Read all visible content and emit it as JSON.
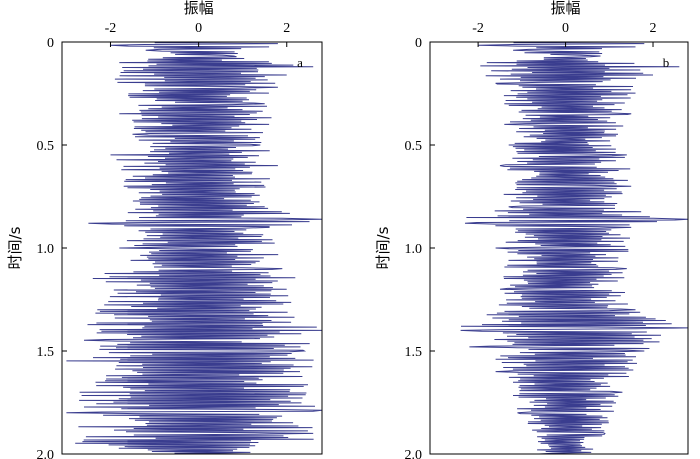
{
  "chart_data": [
    {
      "type": "line",
      "panel_label": "a",
      "title": "",
      "xlabel": "振幅",
      "ylabel": "时间/s",
      "x_axis_position": "top",
      "y_axis_inverted": true,
      "xlim": [
        -3.1,
        2.8
      ],
      "ylim": [
        0,
        2.0
      ],
      "x_ticks": [
        -2,
        0,
        2
      ],
      "x_tick_labels": [
        "-2",
        "0",
        "2"
      ],
      "y_ticks": [
        0,
        0.5,
        1.0,
        1.5,
        2.0
      ],
      "y_tick_labels": [
        "0",
        "0.5",
        "1.0",
        "1.5",
        "2.0"
      ],
      "grid": false,
      "line_color": "#3a3d8f",
      "series": [
        {
          "sample_interval_s": 0.004,
          "keyframes": [
            {
              "t": 0.0,
              "x": -0.6
            },
            {
              "t": 0.008,
              "x": 1.8
            },
            {
              "t": 0.016,
              "x": -2.0
            },
            {
              "t": 0.024,
              "x": 1.6
            },
            {
              "t": 0.04,
              "x": -1.2
            },
            {
              "t": 0.07,
              "x": 0.8
            },
            {
              "t": 0.1,
              "x": -1.8
            },
            {
              "t": 0.12,
              "x": 2.6
            },
            {
              "t": 0.14,
              "x": -1.7
            },
            {
              "t": 0.16,
              "x": 2.0
            },
            {
              "t": 0.18,
              "x": -1.9
            },
            {
              "t": 0.22,
              "x": 1.8
            },
            {
              "t": 0.26,
              "x": -1.6
            },
            {
              "t": 0.3,
              "x": 1.5
            },
            {
              "t": 0.35,
              "x": -1.8
            },
            {
              "t": 0.4,
              "x": 1.6
            },
            {
              "t": 0.45,
              "x": -1.5
            },
            {
              "t": 0.5,
              "x": 1.4
            },
            {
              "t": 0.55,
              "x": -2.0
            },
            {
              "t": 0.6,
              "x": 1.8
            },
            {
              "t": 0.7,
              "x": -1.7
            },
            {
              "t": 0.8,
              "x": 1.5
            },
            {
              "t": 0.86,
              "x": 2.8
            },
            {
              "t": 0.88,
              "x": -2.5
            },
            {
              "t": 0.9,
              "x": 1.6
            },
            {
              "t": 1.0,
              "x": -1.8
            },
            {
              "t": 1.1,
              "x": 1.9
            },
            {
              "t": 1.15,
              "x": -2.4
            },
            {
              "t": 1.2,
              "x": 2.0
            },
            {
              "t": 1.3,
              "x": -2.3
            },
            {
              "t": 1.4,
              "x": 2.8
            },
            {
              "t": 1.45,
              "x": -2.6
            },
            {
              "t": 1.5,
              "x": 2.4
            },
            {
              "t": 1.55,
              "x": -3.0
            },
            {
              "t": 1.6,
              "x": 2.3
            },
            {
              "t": 1.7,
              "x": -2.7
            },
            {
              "t": 1.79,
              "x": 2.8
            },
            {
              "t": 1.8,
              "x": -3.0
            },
            {
              "t": 1.9,
              "x": 2.6
            },
            {
              "t": 1.95,
              "x": -2.8
            },
            {
              "t": 2.0,
              "x": 1.2
            }
          ]
        }
      ]
    },
    {
      "type": "line",
      "panel_label": "b",
      "title": "",
      "xlabel": "振幅",
      "ylabel": "时间/s",
      "x_axis_position": "top",
      "y_axis_inverted": true,
      "xlim": [
        -3.1,
        2.8
      ],
      "ylim": [
        0,
        2.0
      ],
      "x_ticks": [
        -2,
        0,
        2
      ],
      "x_tick_labels": [
        "-2",
        "0",
        "2"
      ],
      "y_ticks": [
        0,
        0.5,
        1.0,
        1.5,
        2.0
      ],
      "y_tick_labels": [
        "0",
        "0.5",
        "1.0",
        "1.5",
        "2.0"
      ],
      "grid": false,
      "line_color": "#3a3d8f",
      "series": [
        {
          "sample_interval_s": 0.004,
          "keyframes": [
            {
              "t": 0.0,
              "x": -0.6
            },
            {
              "t": 0.008,
              "x": 1.8
            },
            {
              "t": 0.016,
              "x": -2.0
            },
            {
              "t": 0.024,
              "x": 1.6
            },
            {
              "t": 0.04,
              "x": -1.2
            },
            {
              "t": 0.07,
              "x": 0.8
            },
            {
              "t": 0.1,
              "x": -1.8
            },
            {
              "t": 0.12,
              "x": 2.6
            },
            {
              "t": 0.14,
              "x": -1.7
            },
            {
              "t": 0.16,
              "x": 2.0
            },
            {
              "t": 0.2,
              "x": -1.6
            },
            {
              "t": 0.25,
              "x": 1.6
            },
            {
              "t": 0.3,
              "x": -1.4
            },
            {
              "t": 0.35,
              "x": 1.5
            },
            {
              "t": 0.4,
              "x": -1.4
            },
            {
              "t": 0.45,
              "x": 1.2
            },
            {
              "t": 0.5,
              "x": -1.3
            },
            {
              "t": 0.55,
              "x": 1.4
            },
            {
              "t": 0.6,
              "x": -1.5
            },
            {
              "t": 0.7,
              "x": 1.5
            },
            {
              "t": 0.8,
              "x": -1.3
            },
            {
              "t": 0.86,
              "x": 2.8
            },
            {
              "t": 0.88,
              "x": -2.3
            },
            {
              "t": 0.9,
              "x": 1.5
            },
            {
              "t": 1.0,
              "x": -1.6
            },
            {
              "t": 1.1,
              "x": 1.4
            },
            {
              "t": 1.2,
              "x": -1.5
            },
            {
              "t": 1.3,
              "x": 1.6
            },
            {
              "t": 1.39,
              "x": 2.8
            },
            {
              "t": 1.4,
              "x": -2.4
            },
            {
              "t": 1.48,
              "x": -2.2
            },
            {
              "t": 1.5,
              "x": 1.8
            },
            {
              "t": 1.6,
              "x": -1.6
            },
            {
              "t": 1.7,
              "x": 1.3
            },
            {
              "t": 1.8,
              "x": -1.1
            },
            {
              "t": 1.9,
              "x": 0.9
            },
            {
              "t": 2.0,
              "x": -0.6
            }
          ]
        }
      ]
    }
  ]
}
